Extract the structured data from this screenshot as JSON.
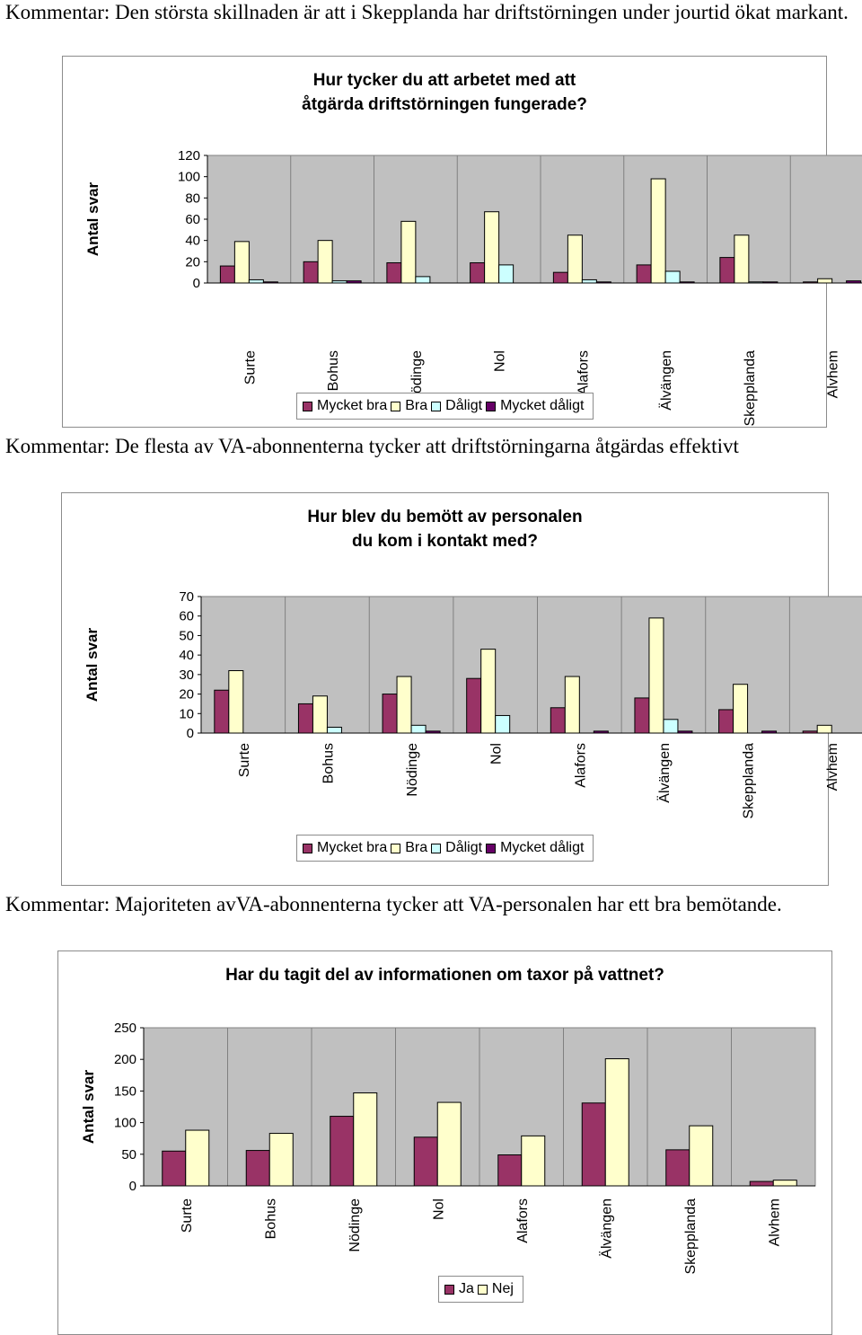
{
  "comments": [
    "Kommentar: Den största skillnaden är att i Skepplanda har driftstörningen under jourtid ökat markant.",
    "Kommentar: De flesta av VA-abonnenterna tycker att driftstörningarna åtgärdas effektivt",
    "Kommentar: Majoriteten avVA-abonnenterna tycker att VA-personalen har ett bra bemötande."
  ],
  "colors": {
    "Mycket bra": "#993366",
    "Bra": "#ffffcc",
    "Dåligt": "#ccffff",
    "Mycket dåligt": "#660066",
    "Ja": "#993366",
    "Nej": "#ffffcc",
    "plot_bg": "#c0c0c0"
  },
  "chart_data": [
    {
      "type": "bar",
      "title": "Hur tycker du att arbetet med att åtgärda driftstörningen fungerade?",
      "title_lines": [
        "Hur tycker du att arbetet med att",
        "åtgärda driftstörningen fungerade?"
      ],
      "ylabel": "Antal svar",
      "xlabel": "",
      "ylim": [
        0,
        120
      ],
      "yticks": [
        0,
        20,
        40,
        60,
        80,
        100,
        120
      ],
      "grid": "vertical",
      "legend": "bottom",
      "categories": [
        "Surte",
        "Bohus",
        "Nödinge",
        "Nol",
        "Alafors",
        "Älvängen",
        "Skepplanda",
        "Alvhem"
      ],
      "series": [
        {
          "name": "Mycket bra",
          "values": [
            16,
            20,
            19,
            19,
            10,
            17,
            24,
            1
          ]
        },
        {
          "name": "Bra",
          "values": [
            39,
            40,
            58,
            67,
            45,
            98,
            45,
            4
          ]
        },
        {
          "name": "Dåligt",
          "values": [
            3,
            2,
            6,
            17,
            3,
            11,
            1,
            0
          ]
        },
        {
          "name": "Mycket dåligt",
          "values": [
            1,
            2,
            0,
            0,
            1,
            1,
            1,
            2
          ]
        }
      ]
    },
    {
      "type": "bar",
      "title": "Hur blev du bemött av personalen du kom i kontakt med?",
      "title_lines": [
        "Hur blev du bemött av personalen",
        "du kom i kontakt med?"
      ],
      "ylabel": "Antal svar",
      "xlabel": "",
      "ylim": [
        0,
        70
      ],
      "yticks": [
        0,
        10,
        20,
        30,
        40,
        50,
        60,
        70
      ],
      "grid": "vertical",
      "legend": "bottom",
      "categories": [
        "Surte",
        "Bohus",
        "Nödinge",
        "Nol",
        "Alafors",
        "Älvängen",
        "Skepplanda",
        "Alvhem"
      ],
      "series": [
        {
          "name": "Mycket bra",
          "values": [
            22,
            15,
            20,
            28,
            13,
            18,
            12,
            1
          ]
        },
        {
          "name": "Bra",
          "values": [
            32,
            19,
            29,
            43,
            29,
            59,
            25,
            4
          ]
        },
        {
          "name": "Dåligt",
          "values": [
            0,
            3,
            4,
            9,
            0,
            7,
            0,
            0
          ]
        },
        {
          "name": "Mycket dåligt",
          "values": [
            0,
            0,
            1,
            0,
            1,
            1,
            1,
            0
          ]
        }
      ]
    },
    {
      "type": "bar",
      "title": "Har du tagit del av informationen om taxor på vattnet?",
      "title_lines": [
        "Har du tagit del av informationen om taxor på vattnet?"
      ],
      "ylabel": "Antal svar",
      "xlabel": "",
      "ylim": [
        0,
        250
      ],
      "yticks": [
        0,
        50,
        100,
        150,
        200,
        250
      ],
      "grid": "vertical",
      "legend": "bottom",
      "categories": [
        "Surte",
        "Bohus",
        "Nödinge",
        "Nol",
        "Alafors",
        "Älvängen",
        "Skepplanda",
        "Alvhem"
      ],
      "series": [
        {
          "name": "Ja",
          "values": [
            55,
            56,
            110,
            77,
            49,
            131,
            57,
            7
          ]
        },
        {
          "name": "Nej",
          "values": [
            88,
            83,
            147,
            132,
            79,
            201,
            95,
            9
          ]
        }
      ]
    }
  ]
}
